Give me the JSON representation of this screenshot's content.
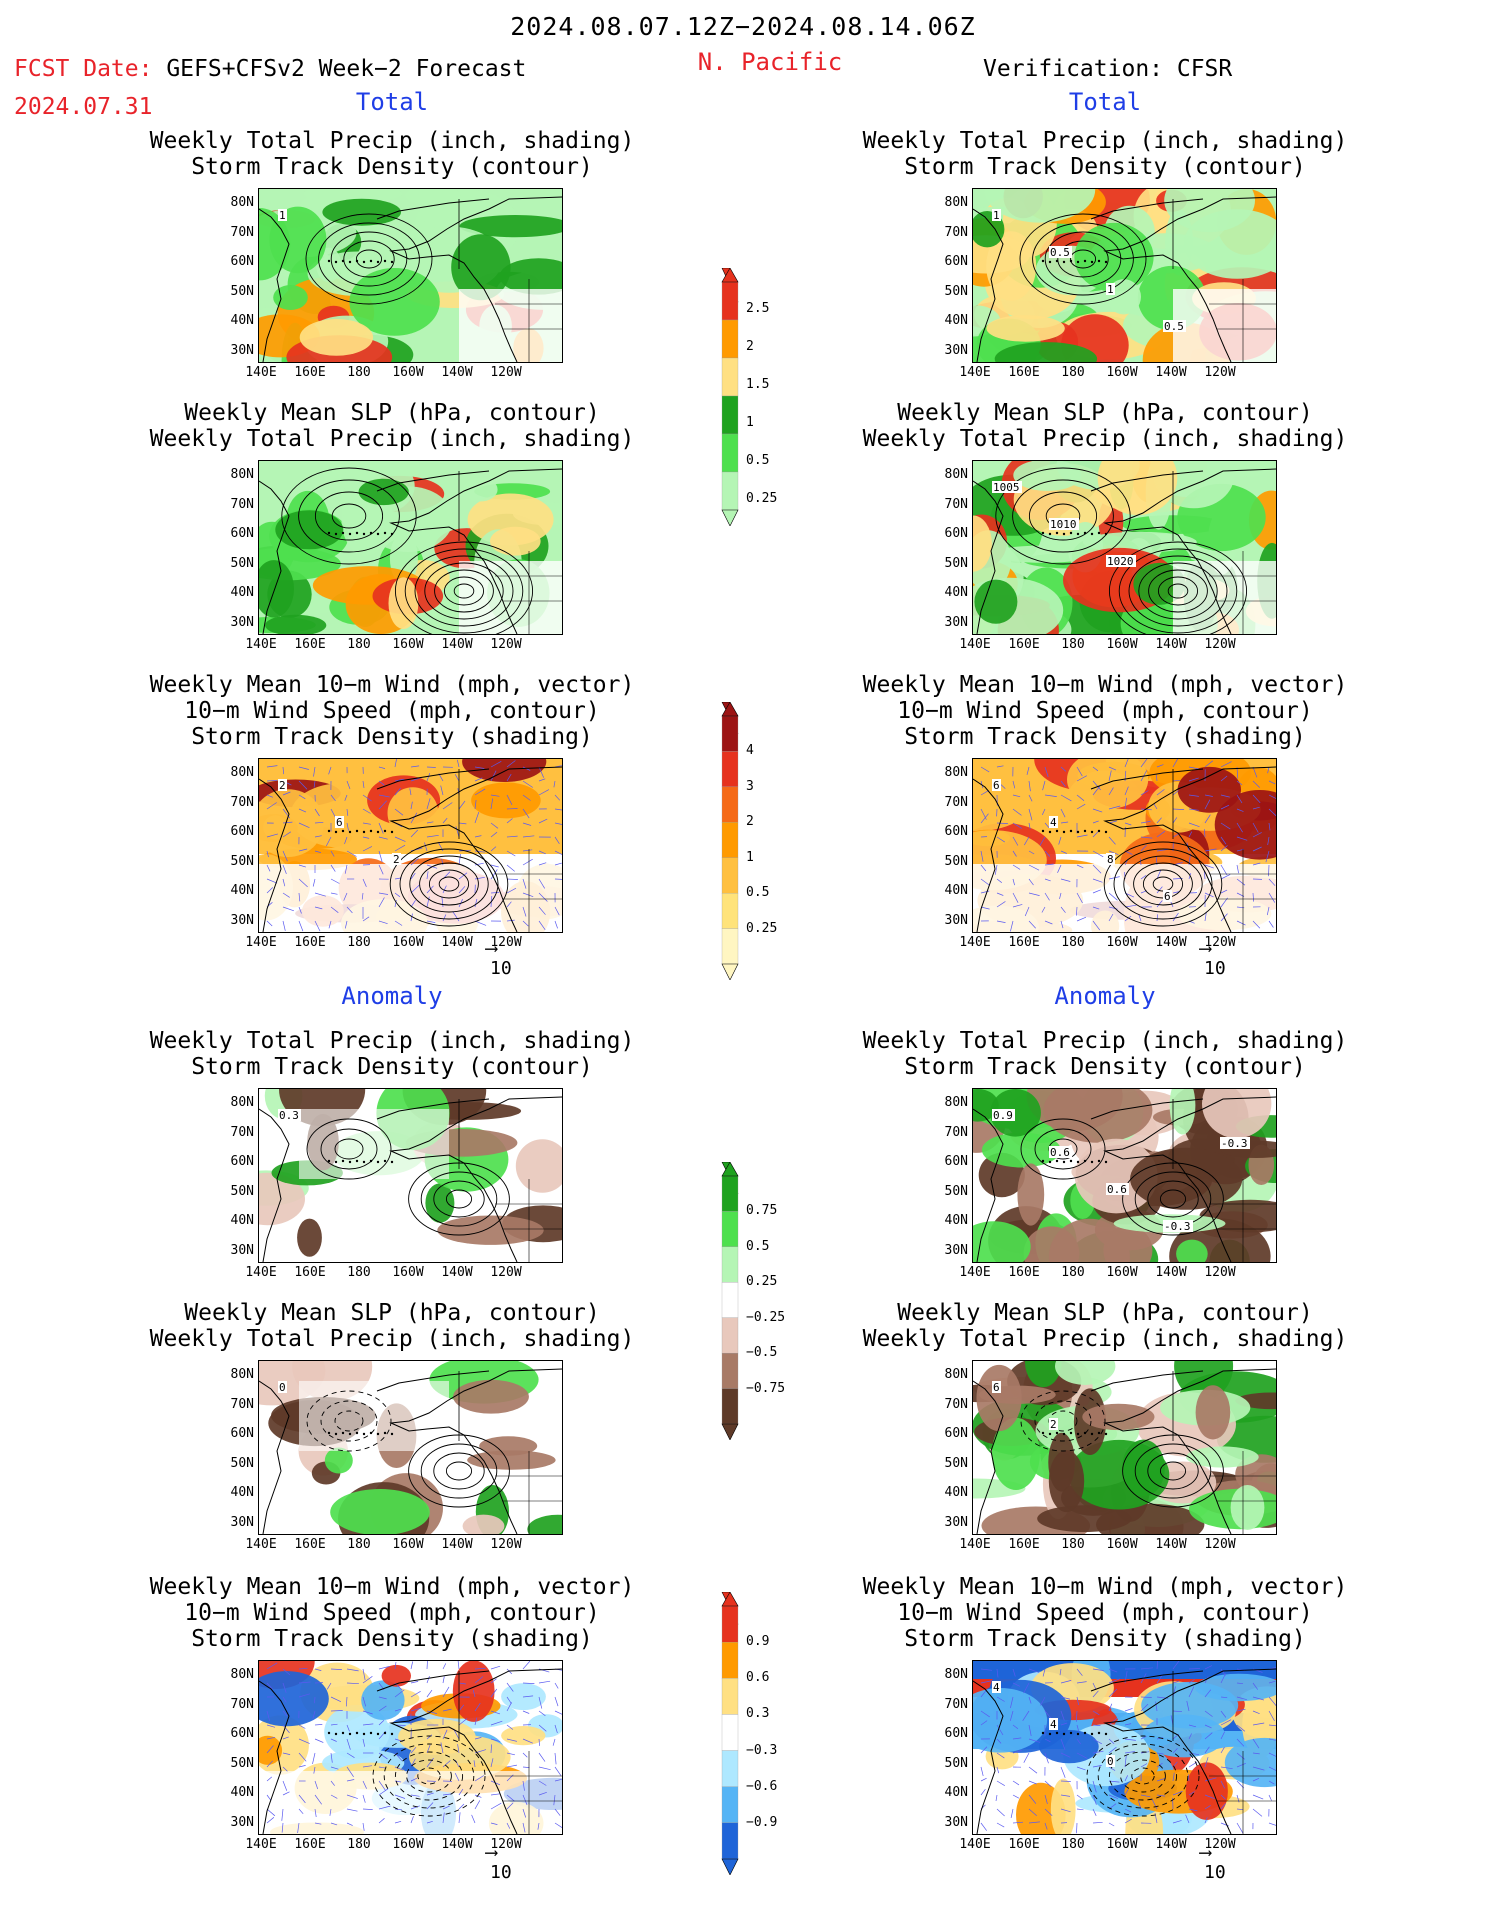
{
  "header": {
    "period": "2024.08.07.12Z−2024.08.14.06Z",
    "region": "N. Pacific",
    "fcst_label": "FCST Date: ",
    "fcst_model": "GEFS+CFSv2 Week−2 Forecast",
    "fcst_date": "2024.07.31",
    "verification": "Verification: CFSR"
  },
  "sections": {
    "total": "Total",
    "anomaly": "Anomaly"
  },
  "titles": {
    "precip_track": [
      "Weekly Total Precip (inch, shading)",
      "Storm Track Density (contour)"
    ],
    "slp_precip": [
      "Weekly Mean SLP (hPa, contour)",
      "Weekly Total Precip (inch, shading)"
    ],
    "wind_track": [
      "Weekly Mean 10−m Wind (mph, vector)",
      "10−m Wind Speed (mph, contour)",
      "Storm Track Density (shading)"
    ]
  },
  "axes": {
    "lat_labels": [
      "80N",
      "70N",
      "60N",
      "50N",
      "40N",
      "30N"
    ],
    "lon_labels": [
      "140E",
      "160E",
      "180",
      "160W",
      "140W",
      "120W"
    ]
  },
  "vector_ref": "10",
  "contour_labels": {
    "f_total_precip": [
      "1"
    ],
    "v_total_precip": [
      "1",
      "0.5",
      "1",
      "0.5"
    ],
    "v_total_slp": [
      "1005",
      "1010",
      "1020"
    ],
    "f_total_wind": [
      "2",
      "6",
      "2"
    ],
    "v_total_wind": [
      "6",
      "4",
      "8",
      "6"
    ],
    "f_anom_precip": [
      "0.3"
    ],
    "v_anom_precip": [
      "0.9",
      "0.6",
      "0.6",
      "-0.3",
      "-0.3"
    ],
    "f_anom_slp": [
      "0"
    ],
    "v_anom_slp": [
      "6",
      "2"
    ],
    "v_anom_wind": [
      "4",
      "4",
      "0"
    ]
  },
  "colorbars": {
    "precip_total": {
      "labels": [
        "2.5",
        "2",
        "1.5",
        "1",
        "0.5",
        "0.25"
      ],
      "colors": [
        "#e6321e",
        "#ff9a00",
        "#ffe083",
        "#1fa21f",
        "#4ee04e",
        "#b5f5b5"
      ]
    },
    "track_total": {
      "labels": [
        "4",
        "3",
        "2",
        "1",
        "0.5",
        "0.25"
      ],
      "colors": [
        "#9c1414",
        "#e6321e",
        "#f56a17",
        "#ff9a00",
        "#ffc040",
        "#ffe37a",
        "#fff6c2"
      ]
    },
    "precip_anom": {
      "labels": [
        "0.75",
        "0.5",
        "0.25",
        "−0.25",
        "−0.5",
        "−0.75"
      ],
      "colors": [
        "#1fa21f",
        "#4ee04e",
        "#b5f5b5",
        "#ffffff",
        "#e8c8bc",
        "#a87a66",
        "#5e3a28"
      ]
    },
    "track_anom": {
      "labels": [
        "0.9",
        "0.6",
        "0.3",
        "−0.3",
        "−0.6",
        "−0.9"
      ],
      "colors": [
        "#e6321e",
        "#ff9a00",
        "#ffe083",
        "#ffffff",
        "#aee8ff",
        "#55b4f5",
        "#1e64d8"
      ]
    }
  }
}
